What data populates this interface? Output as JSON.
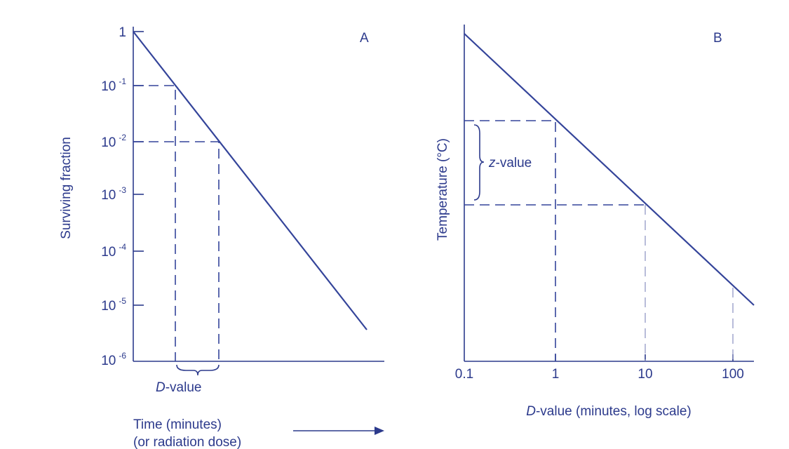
{
  "panel_a": {
    "label": "A",
    "y_axis_title": "Surviving fraction",
    "y_ticks": [
      {
        "base": "1",
        "exp": ""
      },
      {
        "base": "10",
        "exp": "-1"
      },
      {
        "base": "10",
        "exp": "-2"
      },
      {
        "base": "10",
        "exp": "-3"
      },
      {
        "base": "10",
        "exp": "-4"
      },
      {
        "base": "10",
        "exp": "-5"
      },
      {
        "base": "10",
        "exp": "-6"
      }
    ],
    "brace_label": {
      "italic": "D",
      "rest": "-value"
    },
    "x_axis_title": [
      "Time (minutes)",
      "(or radiation dose)"
    ]
  },
  "panel_b": {
    "label": "B",
    "y_axis_title": "Temperature (°C)",
    "x_ticks": [
      "0.1",
      "1",
      "10",
      "100"
    ],
    "brace_label": {
      "italic": "z",
      "rest": "-value"
    },
    "x_axis_title": {
      "italic": "D",
      "rest": "-value (minutes, log scale)"
    }
  }
}
